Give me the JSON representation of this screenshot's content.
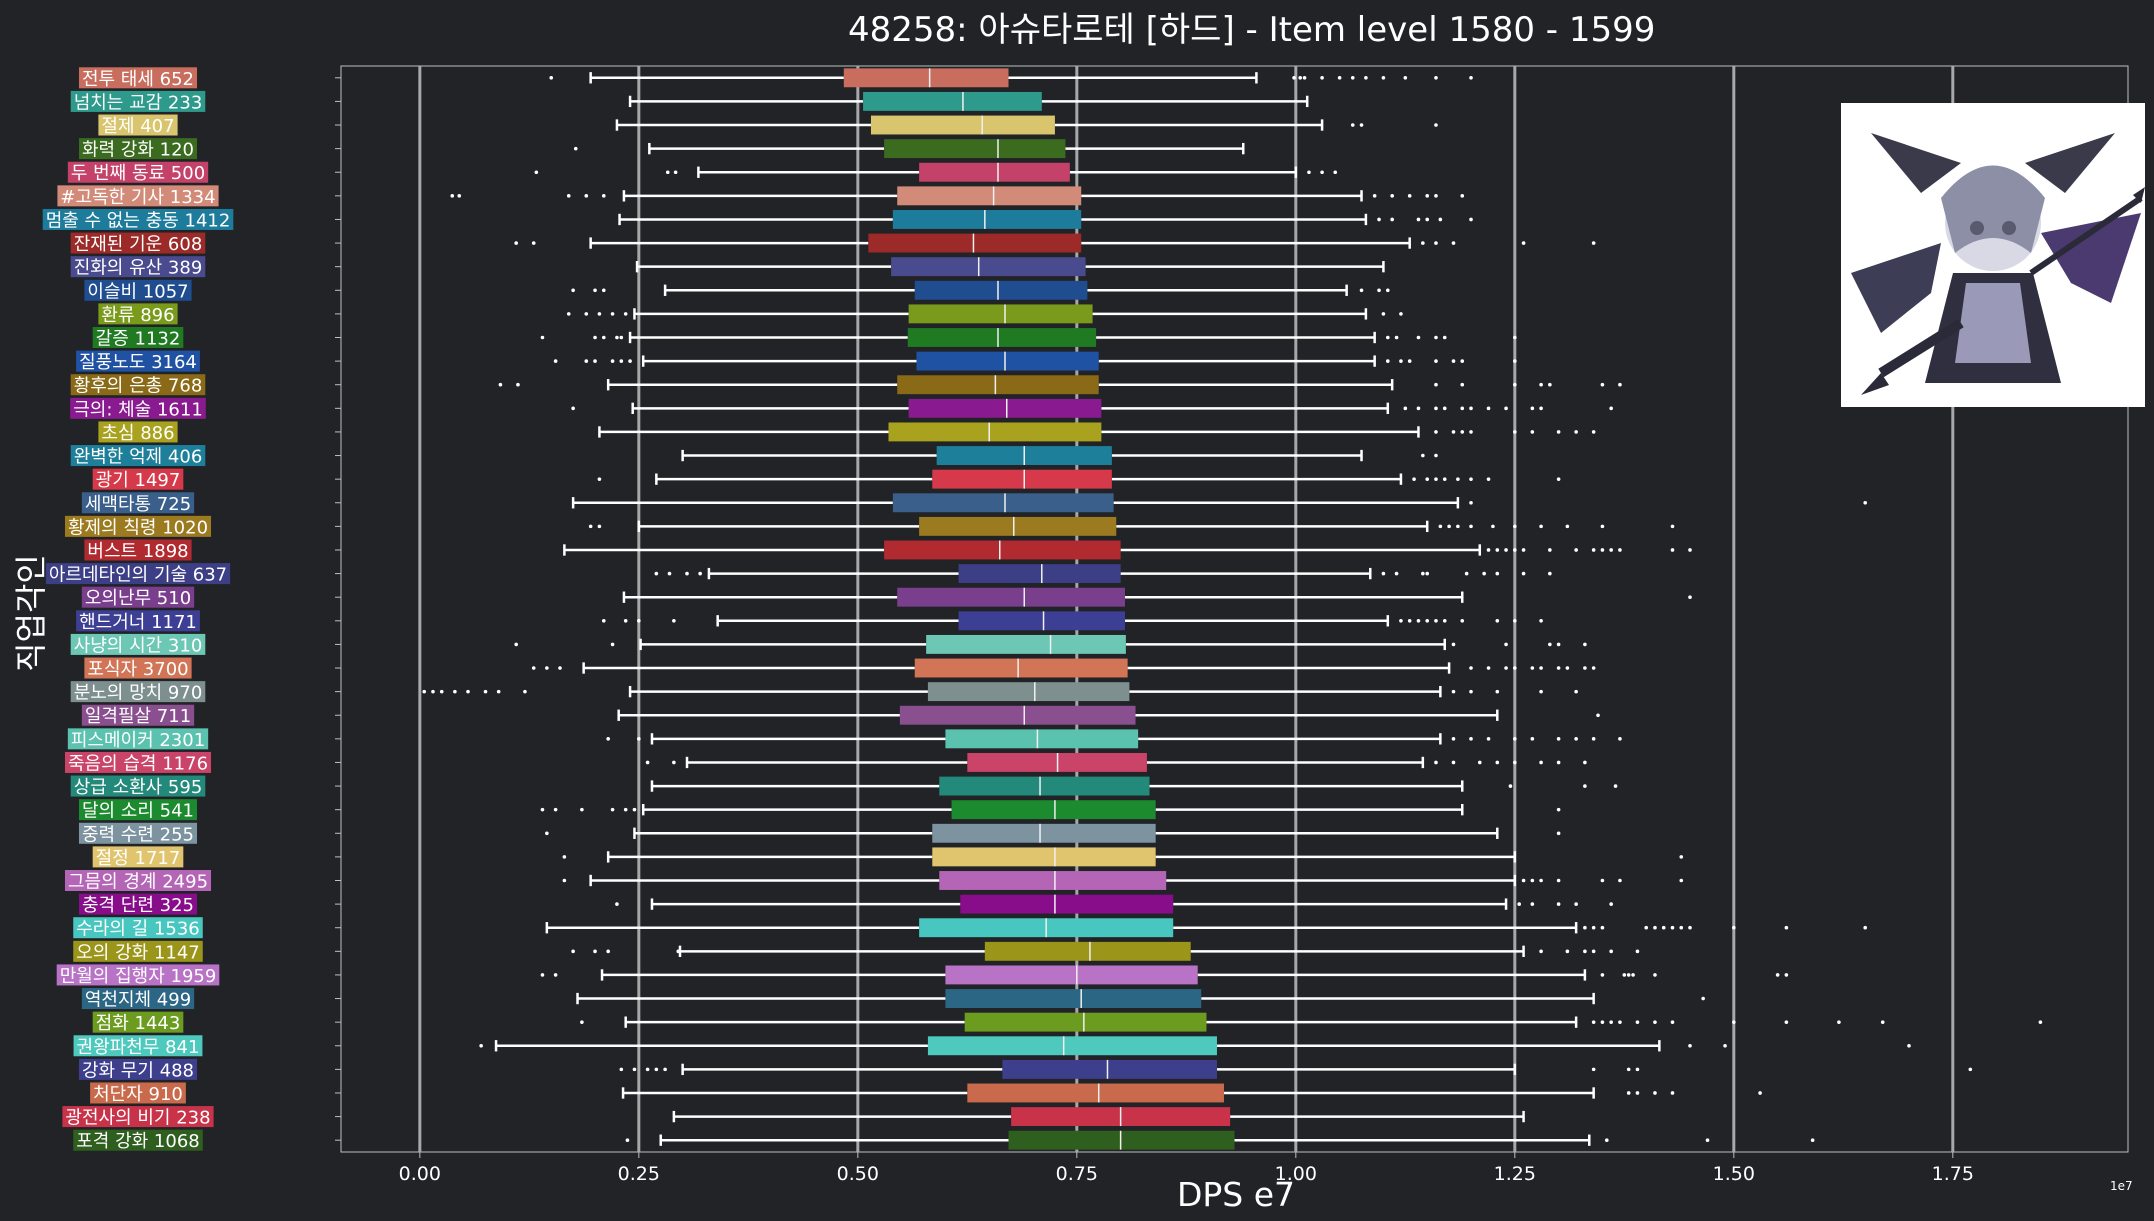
{
  "title": "48258: 아슈타로테 [하드] - Item level 1580 - 1599",
  "colors": {
    "background": "#212327",
    "plot_border": "#bfbfbf",
    "grid": "#a8a8a8",
    "whisker": "#ffffff",
    "median": "#f0f0f0"
  },
  "chart_data": {
    "type": "boxplot",
    "orientation": "horizontal",
    "title": "48258: 아슈타로테 [하드] - Item level 1580 - 1599",
    "xlabel": "DPS e7",
    "ylabel": "직업각인",
    "x_exponent": "1e7",
    "xlim": [
      -0.09,
      1.95
    ],
    "xticks": [
      0.0,
      0.25,
      0.5,
      0.75,
      1.0,
      1.25,
      1.5,
      1.75
    ],
    "xtick_labels": [
      "0.00",
      "0.25",
      "0.50",
      "0.75",
      "1.00",
      "1.25",
      "1.50",
      "1.75"
    ],
    "grid": "vertical",
    "categories": [
      {
        "name": "전투 태세",
        "count": 652,
        "color": "#c96e5f",
        "q1": 0.484,
        "median": 0.582,
        "q3": 0.672,
        "lo": 0.195,
        "hi": 0.955,
        "outliers": [
          0.15,
          0.998,
          1.005,
          1.01,
          1.03,
          1.05,
          1.065,
          1.08,
          1.1,
          1.125,
          1.16,
          1.2
        ]
      },
      {
        "name": "넘치는 교감",
        "count": 233,
        "color": "#2e9a8c",
        "q1": 0.506,
        "median": 0.62,
        "q3": 0.71,
        "lo": 0.24,
        "hi": 1.013,
        "outliers": []
      },
      {
        "name": "절제",
        "count": 407,
        "color": "#d9c56e",
        "q1": 0.515,
        "median": 0.642,
        "q3": 0.725,
        "lo": 0.225,
        "hi": 1.03,
        "outliers": [
          1.065,
          1.075,
          1.16
        ]
      },
      {
        "name": "화력 강화",
        "count": 120,
        "color": "#3a6b1f",
        "q1": 0.53,
        "median": 0.66,
        "q3": 0.737,
        "lo": 0.262,
        "hi": 0.94,
        "outliers": [
          0.178
        ]
      },
      {
        "name": "두 번째 동료",
        "count": 500,
        "color": "#c4426a",
        "q1": 0.57,
        "median": 0.66,
        "q3": 0.742,
        "lo": 0.318,
        "hi": 1.0,
        "outliers": [
          0.133,
          0.283,
          0.292,
          1.015,
          1.03,
          1.045
        ]
      },
      {
        "name": "#고독한 기사",
        "count": 1334,
        "color": "#d38b79",
        "q1": 0.545,
        "median": 0.655,
        "q3": 0.755,
        "lo": 0.233,
        "hi": 1.075,
        "outliers": [
          0.037,
          0.045,
          0.17,
          0.19,
          0.21,
          1.09,
          1.11,
          1.13,
          1.15,
          1.16,
          1.19
        ]
      },
      {
        "name": "멈출 수 없는 충동",
        "count": 1412,
        "color": "#1d7c9c",
        "q1": 0.54,
        "median": 0.645,
        "q3": 0.755,
        "lo": 0.228,
        "hi": 1.08,
        "outliers": [
          1.095,
          1.11,
          1.14,
          1.15,
          1.165,
          1.2
        ]
      },
      {
        "name": "잔재된 기운",
        "count": 608,
        "color": "#9b2a28",
        "q1": 0.512,
        "median": 0.632,
        "q3": 0.755,
        "lo": 0.195,
        "hi": 1.13,
        "outliers": [
          0.11,
          0.13,
          1.145,
          1.16,
          1.18,
          1.26,
          1.34
        ]
      },
      {
        "name": "진화의 유산",
        "count": 389,
        "color": "#4a4a8f",
        "q1": 0.538,
        "median": 0.638,
        "q3": 0.76,
        "lo": 0.248,
        "hi": 1.1,
        "outliers": []
      },
      {
        "name": "이슬비",
        "count": 1057,
        "color": "#1f4d8f",
        "q1": 0.565,
        "median": 0.66,
        "q3": 0.762,
        "lo": 0.28,
        "hi": 1.058,
        "outliers": [
          0.175,
          0.2,
          0.21,
          1.075,
          1.095,
          1.105
        ]
      },
      {
        "name": "환류",
        "count": 896,
        "color": "#7a9a1c",
        "q1": 0.558,
        "median": 0.668,
        "q3": 0.768,
        "lo": 0.245,
        "hi": 1.08,
        "outliers": [
          0.17,
          0.19,
          0.205,
          0.22,
          0.235,
          1.1,
          1.12
        ]
      },
      {
        "name": "갈증",
        "count": 1132,
        "color": "#1f7a22",
        "q1": 0.557,
        "median": 0.66,
        "q3": 0.772,
        "lo": 0.24,
        "hi": 1.09,
        "outliers": [
          0.14,
          0.2,
          0.21,
          0.225,
          0.23,
          1.105,
          1.115,
          1.14,
          1.16,
          1.17,
          1.25
        ]
      },
      {
        "name": "질풍노도",
        "count": 3164,
        "color": "#1f52a3",
        "q1": 0.567,
        "median": 0.668,
        "q3": 0.775,
        "lo": 0.255,
        "hi": 1.09,
        "outliers": [
          0.155,
          0.19,
          0.2,
          0.22,
          0.23,
          0.24,
          1.105,
          1.12,
          1.13,
          1.16,
          1.18,
          1.19,
          1.25
        ]
      },
      {
        "name": "황후의 은총",
        "count": 768,
        "color": "#8a6a17",
        "q1": 0.545,
        "median": 0.657,
        "q3": 0.775,
        "lo": 0.215,
        "hi": 1.11,
        "outliers": [
          0.092,
          0.112,
          1.16,
          1.19,
          1.25,
          1.28,
          1.29,
          1.35,
          1.37
        ]
      },
      {
        "name": "극의: 체술",
        "count": 1611,
        "color": "#8a1a8f",
        "q1": 0.558,
        "median": 0.67,
        "q3": 0.778,
        "lo": 0.243,
        "hi": 1.105,
        "outliers": [
          0.175,
          1.125,
          1.14,
          1.16,
          1.17,
          1.19,
          1.2,
          1.22,
          1.24,
          1.27,
          1.28,
          1.36
        ]
      },
      {
        "name": "초심",
        "count": 886,
        "color": "#a9a21e",
        "q1": 0.535,
        "median": 0.65,
        "q3": 0.778,
        "lo": 0.205,
        "hi": 1.14,
        "outliers": [
          1.16,
          1.18,
          1.19,
          1.2,
          1.25,
          1.27,
          1.3,
          1.32,
          1.34
        ]
      },
      {
        "name": "완벽한 억제",
        "count": 406,
        "color": "#1e7f9a",
        "q1": 0.59,
        "median": 0.69,
        "q3": 0.79,
        "lo": 0.3,
        "hi": 1.075,
        "outliers": [
          1.145,
          1.16
        ]
      },
      {
        "name": "광기",
        "count": 1497,
        "color": "#d63a4a",
        "q1": 0.585,
        "median": 0.69,
        "q3": 0.79,
        "lo": 0.27,
        "hi": 1.12,
        "outliers": [
          0.205,
          1.135,
          1.15,
          1.16,
          1.17,
          1.185,
          1.2,
          1.22,
          1.3
        ]
      },
      {
        "name": "세맥타통",
        "count": 725,
        "color": "#3a5f8a",
        "q1": 0.54,
        "median": 0.668,
        "q3": 0.792,
        "lo": 0.175,
        "hi": 1.185,
        "outliers": [
          1.2,
          1.65
        ]
      },
      {
        "name": "황제의 칙령",
        "count": 1020,
        "color": "#9c7a1f",
        "q1": 0.57,
        "median": 0.678,
        "q3": 0.795,
        "lo": 0.25,
        "hi": 1.15,
        "outliers": [
          0.195,
          0.205,
          1.165,
          1.175,
          1.185,
          1.2,
          1.225,
          1.25,
          1.28,
          1.31,
          1.35,
          1.43
        ]
      },
      {
        "name": "버스트",
        "count": 1898,
        "color": "#b02a2f",
        "q1": 0.53,
        "median": 0.662,
        "q3": 0.8,
        "lo": 0.165,
        "hi": 1.21,
        "outliers": [
          1.22,
          1.23,
          1.24,
          1.25,
          1.26,
          1.29,
          1.32,
          1.34,
          1.35,
          1.36,
          1.37,
          1.43,
          1.45
        ]
      },
      {
        "name": "아르데타인의 기술",
        "count": 637,
        "color": "#3c3f85",
        "q1": 0.615,
        "median": 0.71,
        "q3": 0.8,
        "lo": 0.33,
        "hi": 1.085,
        "outliers": [
          0.27,
          0.285,
          0.305,
          0.32,
          1.1,
          1.115,
          1.145,
          1.15,
          1.195,
          1.215,
          1.23,
          1.26,
          1.29
        ]
      },
      {
        "name": "오의난무",
        "count": 510,
        "color": "#7a3f8c",
        "q1": 0.545,
        "median": 0.69,
        "q3": 0.805,
        "lo": 0.233,
        "hi": 1.19,
        "outliers": [
          1.45
        ]
      },
      {
        "name": "핸드거너",
        "count": 1171,
        "color": "#3d3f95",
        "q1": 0.615,
        "median": 0.712,
        "q3": 0.805,
        "lo": 0.34,
        "hi": 1.105,
        "outliers": [
          0.21,
          0.235,
          0.25,
          0.29,
          1.12,
          1.13,
          1.14,
          1.15,
          1.16,
          1.17,
          1.19,
          1.23,
          1.25,
          1.28
        ]
      },
      {
        "name": "사냥의 시간",
        "count": 310,
        "color": "#6cc7b5",
        "q1": 0.578,
        "median": 0.72,
        "q3": 0.806,
        "lo": 0.252,
        "hi": 1.17,
        "outliers": [
          0.11,
          0.22,
          1.18,
          1.24,
          1.29,
          1.3,
          1.33
        ]
      },
      {
        "name": "포식자",
        "count": 3700,
        "color": "#d27556",
        "q1": 0.565,
        "median": 0.683,
        "q3": 0.808,
        "lo": 0.187,
        "hi": 1.175,
        "outliers": [
          0.13,
          0.145,
          0.16,
          1.2,
          1.22,
          1.24,
          1.25,
          1.27,
          1.28,
          1.3,
          1.31,
          1.33,
          1.34
        ]
      },
      {
        "name": "분노의 망치",
        "count": 970,
        "color": "#7e8f8f",
        "q1": 0.58,
        "median": 0.702,
        "q3": 0.81,
        "lo": 0.24,
        "hi": 1.165,
        "outliers": [
          0.005,
          0.015,
          0.025,
          0.04,
          0.055,
          0.075,
          0.09,
          0.12,
          1.18,
          1.2,
          1.23,
          1.28,
          1.32
        ]
      },
      {
        "name": "일격필살",
        "count": 711,
        "color": "#8a4f8f",
        "q1": 0.548,
        "median": 0.69,
        "q3": 0.817,
        "lo": 0.227,
        "hi": 1.23,
        "outliers": [
          1.345
        ]
      },
      {
        "name": "피스메이커",
        "count": 2301,
        "color": "#5cc2b0",
        "q1": 0.6,
        "median": 0.705,
        "q3": 0.82,
        "lo": 0.265,
        "hi": 1.165,
        "outliers": [
          0.215,
          0.25,
          1.18,
          1.2,
          1.22,
          1.25,
          1.27,
          1.3,
          1.32,
          1.34,
          1.37
        ]
      },
      {
        "name": "죽음의 습격",
        "count": 1176,
        "color": "#c94468",
        "q1": 0.625,
        "median": 0.728,
        "q3": 0.83,
        "lo": 0.305,
        "hi": 1.145,
        "outliers": [
          0.26,
          0.29,
          1.16,
          1.18,
          1.21,
          1.23,
          1.25,
          1.28,
          1.3,
          1.33
        ]
      },
      {
        "name": "상급 소환사",
        "count": 595,
        "color": "#23897a",
        "q1": 0.593,
        "median": 0.708,
        "q3": 0.833,
        "lo": 0.265,
        "hi": 1.19,
        "outliers": [
          1.245,
          1.33,
          1.365
        ]
      },
      {
        "name": "달의 소리",
        "count": 541,
        "color": "#1c8a2e",
        "q1": 0.607,
        "median": 0.725,
        "q3": 0.84,
        "lo": 0.255,
        "hi": 1.19,
        "outliers": [
          0.14,
          0.155,
          0.185,
          0.22,
          0.235,
          0.245,
          1.3
        ]
      },
      {
        "name": "중력 수련",
        "count": 255,
        "color": "#7d94a0",
        "q1": 0.585,
        "median": 0.708,
        "q3": 0.84,
        "lo": 0.245,
        "hi": 1.23,
        "outliers": [
          0.145,
          1.3
        ]
      },
      {
        "name": "절정",
        "count": 1717,
        "color": "#e1c46e",
        "q1": 0.585,
        "median": 0.725,
        "q3": 0.84,
        "lo": 0.215,
        "hi": 1.25,
        "outliers": [
          0.165,
          1.44
        ]
      },
      {
        "name": "그믐의 경계",
        "count": 2495,
        "color": "#b565b6",
        "q1": 0.593,
        "median": 0.725,
        "q3": 0.852,
        "lo": 0.195,
        "hi": 1.25,
        "outliers": [
          0.165,
          1.26,
          1.27,
          1.28,
          1.3,
          1.35,
          1.37,
          1.44
        ]
      },
      {
        "name": "충격 단련",
        "count": 325,
        "color": "#870d8a",
        "q1": 0.617,
        "median": 0.725,
        "q3": 0.86,
        "lo": 0.265,
        "hi": 1.24,
        "outliers": [
          0.225,
          1.255,
          1.27,
          1.3,
          1.32,
          1.36
        ]
      },
      {
        "name": "수라의 길",
        "count": 1536,
        "color": "#47c7c0",
        "q1": 0.57,
        "median": 0.715,
        "q3": 0.86,
        "lo": 0.145,
        "hi": 1.32,
        "outliers": [
          1.33,
          1.34,
          1.35,
          1.4,
          1.41,
          1.42,
          1.43,
          1.44,
          1.45,
          1.5,
          1.56,
          1.65
        ]
      },
      {
        "name": "오의 강화",
        "count": 1147,
        "color": "#9b9519",
        "q1": 0.645,
        "median": 0.765,
        "q3": 0.88,
        "lo": 0.297,
        "hi": 1.26,
        "outliers": [
          0.175,
          0.2,
          0.215,
          0.295,
          1.28,
          1.31,
          1.33,
          1.34,
          1.36,
          1.39
        ]
      },
      {
        "name": "만월의 집행자",
        "count": 1959,
        "color": "#b873c6",
        "q1": 0.6,
        "median": 0.75,
        "q3": 0.888,
        "lo": 0.208,
        "hi": 1.33,
        "outliers": [
          0.14,
          0.155,
          1.35,
          1.375,
          1.38,
          1.385,
          1.41,
          1.55,
          1.56
        ]
      },
      {
        "name": "역천지체",
        "count": 499,
        "color": "#2c6685",
        "q1": 0.6,
        "median": 0.755,
        "q3": 0.892,
        "lo": 0.18,
        "hi": 1.34,
        "outliers": [
          1.465
        ]
      },
      {
        "name": "점화",
        "count": 1443,
        "color": "#6b9c1f",
        "q1": 0.622,
        "median": 0.758,
        "q3": 0.898,
        "lo": 0.235,
        "hi": 1.32,
        "outliers": [
          0.185,
          1.34,
          1.35,
          1.36,
          1.37,
          1.39,
          1.41,
          1.43,
          1.5,
          1.56,
          1.62,
          1.67,
          1.85
        ]
      },
      {
        "name": "권왕파천무",
        "count": 841,
        "color": "#4dc9bd",
        "q1": 0.58,
        "median": 0.735,
        "q3": 0.91,
        "lo": 0.087,
        "hi": 1.415,
        "outliers": [
          0.07,
          1.45,
          1.49,
          1.7
        ]
      },
      {
        "name": "강화 무기",
        "count": 488,
        "color": "#3d3f8d",
        "q1": 0.665,
        "median": 0.785,
        "q3": 0.91,
        "lo": 0.3,
        "hi": 1.25,
        "outliers": [
          0.23,
          0.245,
          0.26,
          0.27,
          0.28,
          1.34,
          1.38,
          1.39,
          1.77
        ]
      },
      {
        "name": "처단자",
        "count": 910,
        "color": "#c86a4b",
        "q1": 0.625,
        "median": 0.775,
        "q3": 0.918,
        "lo": 0.232,
        "hi": 1.34,
        "outliers": [
          1.38,
          1.39,
          1.41,
          1.43,
          1.53
        ]
      },
      {
        "name": "광전사의 비기",
        "count": 238,
        "color": "#c8334a",
        "q1": 0.675,
        "median": 0.8,
        "q3": 0.925,
        "lo": 0.29,
        "hi": 1.26,
        "outliers": []
      },
      {
        "name": "포격 강화",
        "count": 1068,
        "color": "#2f5f1f",
        "q1": 0.672,
        "median": 0.8,
        "q3": 0.93,
        "lo": 0.275,
        "hi": 1.335,
        "outliers": [
          0.237,
          1.355,
          1.47,
          1.59
        ]
      }
    ]
  }
}
